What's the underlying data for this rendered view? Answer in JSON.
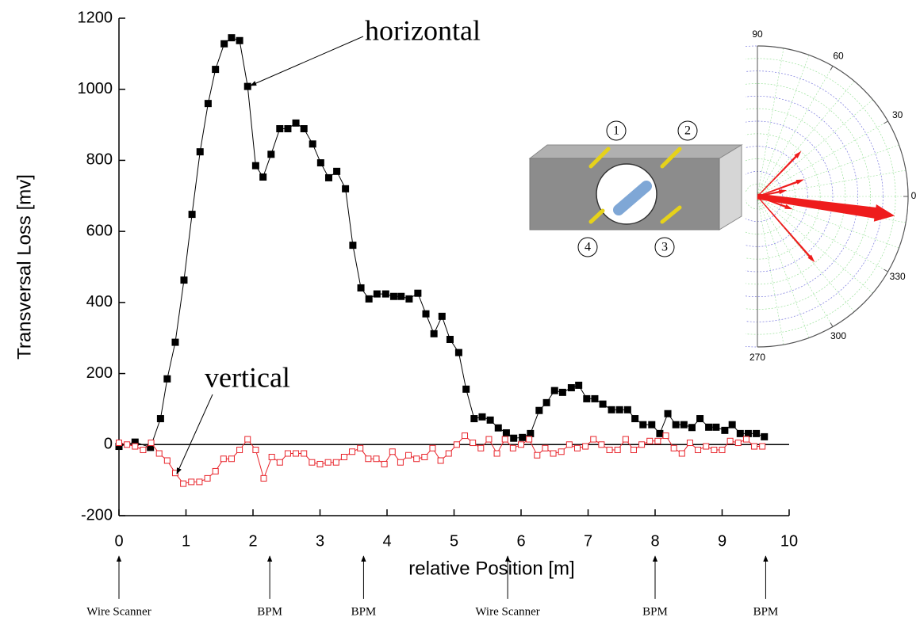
{
  "chart_data": {
    "type": "line",
    "x_label": "relative Position  [m]",
    "y_label": "Transversal Loss [mv]",
    "xlim": [
      0,
      10
    ],
    "xticks": [
      0,
      1,
      2,
      3,
      4,
      5,
      6,
      7,
      8,
      9,
      10
    ],
    "ylim": [
      -200,
      1200
    ],
    "yticks": [
      -200,
      0,
      200,
      400,
      600,
      800,
      1000,
      1200
    ],
    "series": [
      {
        "name": "horizontal",
        "color": "#000000",
        "marker": "filled",
        "x": [
          0,
          0.24,
          0.47,
          0.62,
          0.72,
          0.84,
          0.97,
          1.09,
          1.21,
          1.33,
          1.44,
          1.57,
          1.68,
          1.8,
          1.92,
          2.04,
          2.15,
          2.27,
          2.4,
          2.52,
          2.64,
          2.76,
          2.89,
          3.01,
          3.13,
          3.25,
          3.38,
          3.49,
          3.61,
          3.73,
          3.85,
          3.98,
          4.1,
          4.21,
          4.33,
          4.46,
          4.58,
          4.7,
          4.82,
          4.94,
          5.07,
          5.18,
          5.3,
          5.42,
          5.54,
          5.66,
          5.78,
          5.89,
          6.02,
          6.14,
          6.27,
          6.38,
          6.5,
          6.62,
          6.75,
          6.86,
          6.98,
          7.1,
          7.22,
          7.35,
          7.47,
          7.59,
          7.7,
          7.82,
          7.95,
          8.07,
          8.19,
          8.31,
          8.43,
          8.55,
          8.67,
          8.8,
          8.91,
          9.04,
          9.15,
          9.27,
          9.39,
          9.51,
          9.63
        ],
        "values": [
          -5,
          7,
          -8,
          73,
          185,
          288,
          463,
          648,
          824,
          960,
          1056,
          1128,
          1145,
          1137,
          1008,
          785,
          753,
          817,
          889,
          889,
          905,
          889,
          846,
          793,
          751,
          769,
          720,
          561,
          441,
          410,
          424,
          424,
          417,
          417,
          410,
          426,
          368,
          312,
          361,
          296,
          259,
          156,
          73,
          78,
          69,
          47,
          33,
          18,
          20,
          31,
          96,
          118,
          152,
          147,
          160,
          167,
          129,
          129,
          114,
          98,
          98,
          98,
          73,
          56,
          56,
          31,
          87,
          56,
          56,
          48,
          73,
          49,
          49,
          40,
          56,
          31,
          31,
          31,
          22
        ]
      },
      {
        "name": "vertical",
        "color": "#e8242b",
        "marker": "open",
        "x": [
          0,
          0.12,
          0.24,
          0.36,
          0.48,
          0.6,
          0.72,
          0.84,
          0.96,
          1.08,
          1.2,
          1.32,
          1.44,
          1.56,
          1.68,
          1.8,
          1.92,
          2.04,
          2.16,
          2.28,
          2.4,
          2.52,
          2.64,
          2.76,
          2.88,
          3,
          3.12,
          3.24,
          3.36,
          3.48,
          3.6,
          3.72,
          3.84,
          3.96,
          4.08,
          4.2,
          4.32,
          4.44,
          4.56,
          4.68,
          4.8,
          4.92,
          5.04,
          5.16,
          5.28,
          5.4,
          5.52,
          5.64,
          5.76,
          5.88,
          6,
          6.12,
          6.24,
          6.36,
          6.48,
          6.6,
          6.72,
          6.84,
          6.96,
          7.08,
          7.2,
          7.32,
          7.44,
          7.56,
          7.68,
          7.8,
          7.92,
          8.04,
          8.16,
          8.28,
          8.4,
          8.52,
          8.64,
          8.76,
          8.88,
          9,
          9.12,
          9.24,
          9.36,
          9.48,
          9.6
        ],
        "values": [
          5,
          0,
          -5,
          -15,
          5,
          -25,
          -45,
          -80,
          -110,
          -105,
          -105,
          -95,
          -75,
          -40,
          -40,
          -15,
          15,
          -15,
          -95,
          -35,
          -50,
          -25,
          -25,
          -25,
          -50,
          -55,
          -50,
          -50,
          -35,
          -20,
          -10,
          -40,
          -40,
          -55,
          -20,
          -50,
          -30,
          -40,
          -35,
          -10,
          -45,
          -25,
          0,
          25,
          5,
          -10,
          15,
          -25,
          15,
          -10,
          0,
          15,
          -30,
          -10,
          -25,
          -20,
          0,
          -10,
          -5,
          15,
          0,
          -15,
          -15,
          15,
          -15,
          0,
          10,
          10,
          25,
          -10,
          -25,
          5,
          -15,
          -5,
          -15,
          -15,
          10,
          5,
          15,
          -5,
          -5
        ]
      }
    ],
    "markers": [
      {
        "position": 0,
        "label": "Wire Scanner"
      },
      {
        "position": 2.25,
        "label": "BPM"
      },
      {
        "position": 3.65,
        "label": "BPM"
      },
      {
        "position": 5.8,
        "label": "Wire Scanner"
      },
      {
        "position": 8.0,
        "label": "BPM"
      },
      {
        "position": 9.65,
        "label": "BPM"
      }
    ]
  },
  "diagram": {
    "electrodes": [
      "1",
      "2",
      "3",
      "4"
    ]
  },
  "polar": {
    "angle_ticks": [
      0,
      30,
      60,
      90,
      270,
      300,
      330
    ],
    "rlim": [
      0,
      1
    ],
    "arrows": [
      {
        "angle": -8,
        "length": 0.92
      },
      {
        "angle": 46,
        "length": 0.42
      },
      {
        "angle": -49,
        "length": 0.58
      },
      {
        "angle": 20,
        "length": 0.33
      },
      {
        "angle": 12,
        "length": 0.2
      },
      {
        "angle": -20,
        "length": 0.25
      }
    ]
  }
}
